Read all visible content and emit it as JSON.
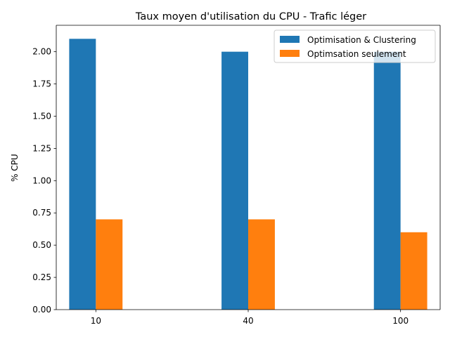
{
  "chart_data": {
    "type": "bar",
    "title": "Taux moyen d'utilisation du CPU - Trafic léger",
    "xlabel": "",
    "ylabel": "% CPU",
    "categories": [
      "10",
      "40",
      "100"
    ],
    "series": [
      {
        "name": "Optimisation & Clustering",
        "values": [
          2.1,
          2.0,
          2.0
        ],
        "color": "#1f77b4"
      },
      {
        "name": "Optimsation seulement",
        "values": [
          0.7,
          0.7,
          0.6
        ],
        "color": "#ff7f0e"
      }
    ],
    "ylim": [
      0,
      2.205
    ],
    "yticks": [
      "0.00",
      "0.25",
      "0.50",
      "0.75",
      "1.00",
      "1.25",
      "1.50",
      "1.75",
      "2.00"
    ],
    "grid": false,
    "legend_position": "top-right"
  }
}
